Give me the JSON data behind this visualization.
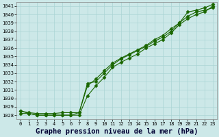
{
  "title": "Graphe pression niveau de la mer (hPa)",
  "xlim": [
    -0.5,
    23.5
  ],
  "ylim": [
    1027.5,
    1041.5
  ],
  "yticks": [
    1028,
    1029,
    1030,
    1031,
    1032,
    1033,
    1034,
    1035,
    1036,
    1037,
    1038,
    1039,
    1040,
    1041
  ],
  "xticks": [
    0,
    1,
    2,
    3,
    4,
    5,
    6,
    7,
    8,
    9,
    10,
    11,
    12,
    13,
    14,
    15,
    16,
    17,
    18,
    19,
    20,
    21,
    22,
    23
  ],
  "bg_color": "#cce8e8",
  "grid_color": "#aad4d4",
  "line_color": "#1a6600",
  "line1": [
    1028.5,
    1028.3,
    1028.2,
    1028.2,
    1028.2,
    1028.3,
    1028.3,
    1028.3,
    1031.5,
    1032.3,
    1033.3,
    1034.2,
    1034.8,
    1035.3,
    1035.8,
    1036.3,
    1037.0,
    1037.5,
    1038.3,
    1039.0,
    1040.3,
    1040.5,
    1040.8,
    1041.2
  ],
  "line2": [
    1028.5,
    1028.2,
    1028.0,
    1028.0,
    1028.0,
    1028.0,
    1028.0,
    1028.3,
    1031.8,
    1032.0,
    1033.0,
    1034.0,
    1034.7,
    1035.2,
    1035.7,
    1036.2,
    1036.8,
    1037.3,
    1038.0,
    1039.0,
    1039.8,
    1040.3,
    1040.5,
    1040.8
  ],
  "line3": [
    1028.2,
    1028.2,
    1028.0,
    1028.0,
    1028.0,
    1028.0,
    1028.0,
    1028.0,
    1030.3,
    1031.5,
    1032.5,
    1033.7,
    1034.3,
    1034.8,
    1035.3,
    1036.0,
    1036.5,
    1037.0,
    1037.8,
    1038.8,
    1039.5,
    1040.0,
    1040.3,
    1041.0
  ],
  "marker": "D",
  "markersize": 2.5,
  "linewidth": 0.8,
  "title_fontsize": 7.5,
  "tick_fontsize": 5.0
}
